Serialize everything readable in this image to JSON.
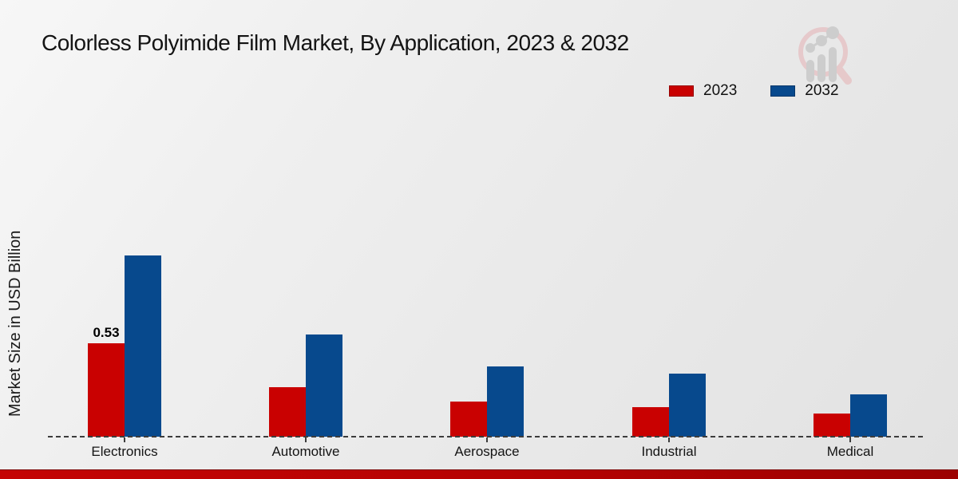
{
  "title": "Colorless Polyimide Film Market, By Application, 2023 & 2032",
  "ylabel": "Market Size in USD Billion",
  "colors": {
    "series_2023": "#c90101",
    "series_2032": "#07498d",
    "axis": "#3c3c3c",
    "bottom_band": "#b50303",
    "background": "#ebebeb"
  },
  "legend": {
    "items": [
      {
        "label": "2023",
        "color": "#c90101"
      },
      {
        "label": "2032",
        "color": "#07498d"
      }
    ]
  },
  "logo": {
    "name": "market-research-future-watermark"
  },
  "chart_data": {
    "type": "bar",
    "title": "Colorless Polyimide Film Market, By Application, 2023 & 2032",
    "xlabel": "",
    "ylabel": "Market Size in USD Billion",
    "categories": [
      "Electronics",
      "Automotive",
      "Aerospace",
      "Industrial",
      "Medical"
    ],
    "series": [
      {
        "name": "2023",
        "color": "#c90101",
        "values": [
          0.53,
          0.28,
          0.2,
          0.17,
          0.13
        ]
      },
      {
        "name": "2032",
        "color": "#07498d",
        "values": [
          1.03,
          0.58,
          0.4,
          0.36,
          0.24
        ]
      }
    ],
    "ylim": [
      0,
      1.15
    ],
    "grid": false,
    "axis_style": "dashed-baseline-only",
    "legend_position": "top-right",
    "annotations": [
      {
        "series": "2023",
        "category": "Electronics",
        "text": "0.53"
      }
    ]
  }
}
